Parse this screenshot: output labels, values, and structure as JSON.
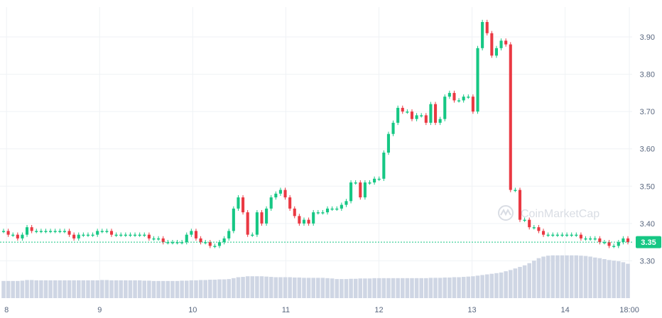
{
  "watermark": "CoinMarketCap",
  "current_price_label": "3.35",
  "colors": {
    "up": "#16c784",
    "down": "#ea3943",
    "volume": "#cfd6e4",
    "grid": "#eff2f5",
    "price_line": "#16c784"
  },
  "chart_data": {
    "type": "candlestick",
    "ylim": [
      3.2,
      3.98
    ],
    "yticks": [
      3.3,
      3.4,
      3.5,
      3.6,
      3.7,
      3.8,
      3.9
    ],
    "ytick_labels": [
      "3.30",
      "3.40",
      "3.50",
      "3.60",
      "3.70",
      "3.80",
      "3.90"
    ],
    "xlim": [
      7.93,
      14.72
    ],
    "xticks": [
      8,
      9,
      10,
      11,
      12,
      13,
      14,
      14.69
    ],
    "xtick_labels": [
      "8",
      "9",
      "10",
      "11",
      "12",
      "13",
      "14",
      "18:00"
    ],
    "current_price": 3.35,
    "candle_close": [
      3.38,
      3.37,
      3.37,
      3.36,
      3.37,
      3.39,
      3.38,
      3.38,
      3.38,
      3.38,
      3.38,
      3.38,
      3.38,
      3.38,
      3.37,
      3.36,
      3.37,
      3.37,
      3.37,
      3.37,
      3.38,
      3.38,
      3.38,
      3.37,
      3.37,
      3.37,
      3.37,
      3.37,
      3.37,
      3.37,
      3.37,
      3.36,
      3.36,
      3.36,
      3.35,
      3.35,
      3.35,
      3.35,
      3.35,
      3.37,
      3.38,
      3.36,
      3.35,
      3.35,
      3.34,
      3.34,
      3.35,
      3.36,
      3.38,
      3.44,
      3.47,
      3.43,
      3.37,
      3.37,
      3.43,
      3.4,
      3.44,
      3.47,
      3.48,
      3.49,
      3.47,
      3.44,
      3.42,
      3.4,
      3.41,
      3.4,
      3.43,
      3.43,
      3.43,
      3.44,
      3.44,
      3.44,
      3.45,
      3.46,
      3.51,
      3.51,
      3.47,
      3.51,
      3.51,
      3.52,
      3.52,
      3.59,
      3.64,
      3.67,
      3.71,
      3.7,
      3.7,
      3.68,
      3.69,
      3.69,
      3.67,
      3.72,
      3.67,
      3.68,
      3.74,
      3.75,
      3.73,
      3.73,
      3.74,
      3.74,
      3.7,
      3.87,
      3.94,
      3.91,
      3.85,
      3.87,
      3.89,
      3.88,
      3.49,
      3.49,
      3.41,
      3.41,
      3.39,
      3.39,
      3.38,
      3.37,
      3.37,
      3.37,
      3.37,
      3.37,
      3.37,
      3.37,
      3.37,
      3.36,
      3.36,
      3.36,
      3.36,
      3.35,
      3.35,
      3.34,
      3.34,
      3.35,
      3.36,
      3.35
    ],
    "volume_relative": [
      0.55,
      0.55,
      0.55,
      0.55,
      0.56,
      0.58,
      0.58,
      0.57,
      0.57,
      0.57,
      0.57,
      0.57,
      0.57,
      0.57,
      0.57,
      0.57,
      0.57,
      0.57,
      0.57,
      0.57,
      0.57,
      0.58,
      0.58,
      0.57,
      0.57,
      0.57,
      0.57,
      0.57,
      0.57,
      0.57,
      0.56,
      0.56,
      0.55,
      0.55,
      0.55,
      0.55,
      0.55,
      0.55,
      0.56,
      0.56,
      0.57,
      0.57,
      0.58,
      0.58,
      0.59,
      0.59,
      0.6,
      0.6,
      0.61,
      0.64,
      0.67,
      0.68,
      0.7,
      0.7,
      0.7,
      0.7,
      0.69,
      0.68,
      0.67,
      0.67,
      0.67,
      0.67,
      0.66,
      0.66,
      0.65,
      0.65,
      0.65,
      0.65,
      0.65,
      0.64,
      0.63,
      0.61,
      0.61,
      0.61,
      0.62,
      0.62,
      0.63,
      0.63,
      0.63,
      0.64,
      0.64,
      0.64,
      0.64,
      0.64,
      0.64,
      0.64,
      0.64,
      0.64,
      0.64,
      0.64,
      0.64,
      0.65,
      0.65,
      0.65,
      0.66,
      0.66,
      0.67,
      0.67,
      0.68,
      0.69,
      0.7,
      0.72,
      0.74,
      0.76,
      0.78,
      0.8,
      0.82,
      0.86,
      0.9,
      0.95,
      1.0,
      1.05,
      1.12,
      1.2,
      1.28,
      1.33,
      1.36,
      1.37,
      1.37,
      1.37,
      1.37,
      1.37,
      1.37,
      1.36,
      1.35,
      1.33,
      1.3,
      1.28,
      1.25,
      1.22,
      1.2,
      1.18,
      1.15,
      1.1
    ]
  }
}
